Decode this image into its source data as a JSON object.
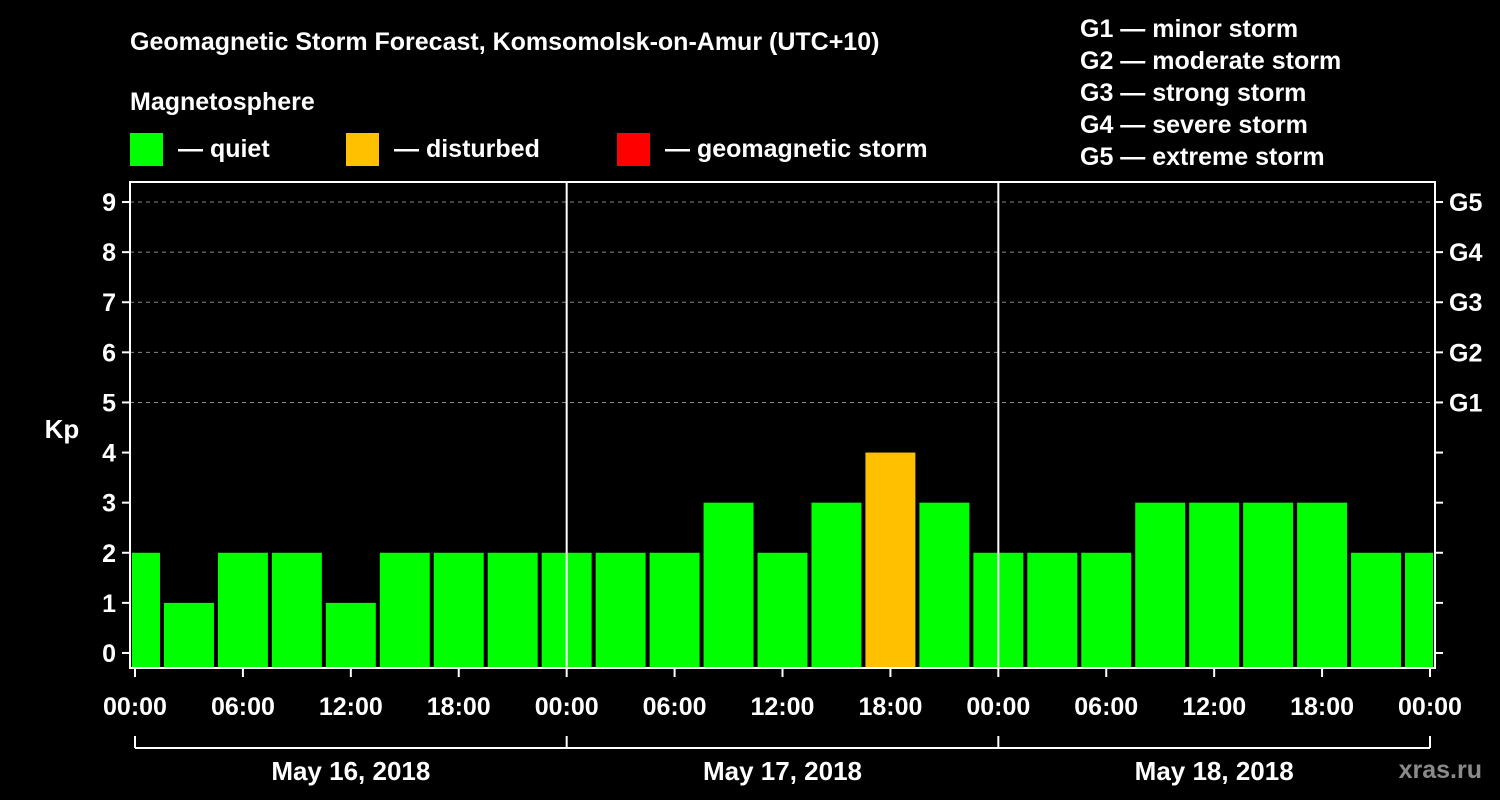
{
  "chart_data": {
    "type": "bar",
    "title": "Geomagnetic Storm Forecast, Komsomolsk-on-Amur (UTC+10)",
    "legend_title": "Magnetosphere",
    "legend": [
      {
        "label": "— quiet",
        "color": "#00ff00"
      },
      {
        "label": "— disturbed",
        "color": "#ffc000"
      },
      {
        "label": "— geomagnetic storm",
        "color": "#ff0000"
      }
    ],
    "storm_scale": [
      "G1 — minor storm",
      "G2 — moderate storm",
      "G3 — strong storm",
      "G4 — severe storm",
      "G5 — extreme storm"
    ],
    "ylabel": "Kp",
    "ylim": [
      -0.3,
      9.4
    ],
    "yticks": [
      "0",
      "1",
      "2",
      "3",
      "4",
      "5",
      "6",
      "7",
      "8",
      "9"
    ],
    "right_ticks": [
      {
        "kp": 5,
        "label": "G1"
      },
      {
        "kp": 6,
        "label": "G2"
      },
      {
        "kp": 7,
        "label": "G3"
      },
      {
        "kp": 8,
        "label": "G4"
      },
      {
        "kp": 9,
        "label": "G5"
      }
    ],
    "grid": "dashed horizontal at Kp 5–9",
    "xticks": [
      "00:00",
      "06:00",
      "12:00",
      "18:00",
      "00:00",
      "06:00",
      "12:00",
      "18:00",
      "00:00",
      "06:00",
      "12:00",
      "18:00",
      "00:00"
    ],
    "days": [
      "May 16, 2018",
      "May 17, 2018",
      "May 18, 2018"
    ],
    "hours_per_bar": 3,
    "values": [
      2,
      1,
      2,
      2,
      1,
      2,
      2,
      2,
      2,
      2,
      2,
      3,
      2,
      3,
      4,
      3,
      2,
      2,
      2,
      3,
      3,
      3,
      3,
      2,
      2
    ],
    "colors": [
      "#00ff00",
      "#00ff00",
      "#00ff00",
      "#00ff00",
      "#00ff00",
      "#00ff00",
      "#00ff00",
      "#00ff00",
      "#00ff00",
      "#00ff00",
      "#00ff00",
      "#00ff00",
      "#00ff00",
      "#00ff00",
      "#ffc000",
      "#00ff00",
      "#00ff00",
      "#00ff00",
      "#00ff00",
      "#00ff00",
      "#00ff00",
      "#00ff00",
      "#00ff00",
      "#00ff00",
      "#00ff00"
    ],
    "watermark": "xras.ru"
  }
}
